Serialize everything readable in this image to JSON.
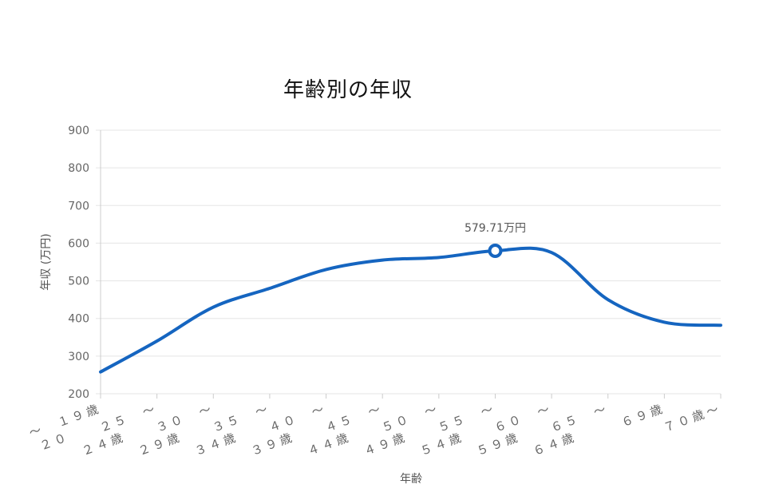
{
  "chart_data": {
    "type": "line",
    "title": "年齢別の年収",
    "xlabel": "年齢",
    "ylabel": "年収 (万円)",
    "ylim": [
      200,
      900
    ],
    "yticks": [
      200,
      300,
      400,
      500,
      600,
      700,
      800,
      900
    ],
    "grid": true,
    "categories": [
      "２０　〜　１９歳",
      "２５　〜　２４歳",
      "３０　〜　２９歳",
      "３５　〜　３４歳",
      "４０　〜　３９歳",
      "４５　〜　４４歳",
      "５０　〜　４９歳",
      "５５　〜　５４歳",
      "６０　〜　５９歳",
      "６５　〜　６４歳",
      "６９歳",
      "７０歳〜"
    ],
    "category_lines": [
      [
        "〜　１９歳",
        "２０"
      ],
      [
        "２５　〜",
        "２４歳"
      ],
      [
        "３０　〜",
        "２９歳"
      ],
      [
        "３５　〜",
        "３４歳"
      ],
      [
        "４０　〜",
        "３９歳"
      ],
      [
        "４５　〜",
        "４４歳"
      ],
      [
        "５０　〜",
        "４９歳"
      ],
      [
        "５５　〜",
        "５４歳"
      ],
      [
        "６０　〜",
        "５９歳"
      ],
      [
        "６５　〜",
        "６４歳"
      ],
      [
        "６９歳",
        ""
      ],
      [
        "７０歳〜",
        ""
      ]
    ],
    "series": [
      {
        "values": [
          258,
          340,
          430,
          480,
          530,
          555,
          562,
          579.71,
          575,
          450,
          390,
          382
        ],
        "color": "#1565c0"
      }
    ],
    "highlight": {
      "index": 7,
      "label": "579.71万円"
    }
  }
}
